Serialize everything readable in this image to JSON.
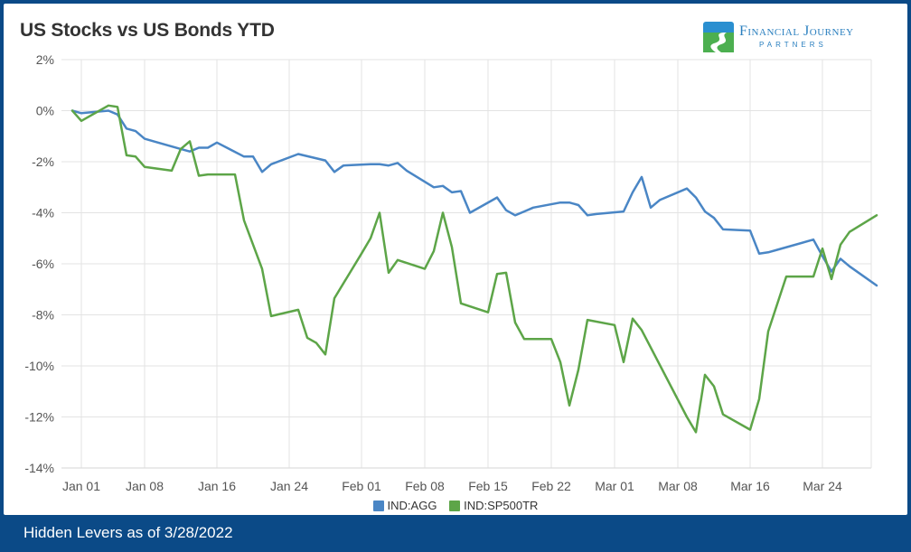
{
  "header": {
    "title": "US Stocks vs US Bonds YTD"
  },
  "logo": {
    "name": "Financial Journey",
    "subtitle": "PARTNERS",
    "icon": "road-s-logo-icon"
  },
  "footer": {
    "text": "Hidden Levers as of 3/28/2022"
  },
  "colors": {
    "agg": "#4a86c5",
    "sp500": "#5da548",
    "grid": "#e3e3e3",
    "footer_bg": "#0b4a87"
  },
  "chart_data": {
    "type": "line",
    "title": "US Stocks vs US Bonds YTD",
    "xlabel": "",
    "ylabel": "",
    "x_ticks": [
      "Jan 01",
      "Jan 08",
      "Jan 16",
      "Jan 24",
      "Feb 01",
      "Feb 08",
      "Feb 15",
      "Feb 22",
      "Mar 01",
      "Mar 08",
      "Mar 16",
      "Mar 24"
    ],
    "y_ticks": [
      "2%",
      "0%",
      "-2%",
      "-4%",
      "-6%",
      "-8%",
      "-10%",
      "-12%",
      "-14%"
    ],
    "ylim": [
      -14,
      2
    ],
    "xlim_days": [
      0,
      87
    ],
    "grid": true,
    "legend_position": "bottom",
    "series": [
      {
        "name": "IND:AGG",
        "color": "#4a86c5",
        "points": [
          [
            -1,
            0
          ],
          [
            0,
            -0.1
          ],
          [
            3,
            0
          ],
          [
            4,
            -0.15
          ],
          [
            5,
            -0.7
          ],
          [
            6,
            -0.8
          ],
          [
            7,
            -1.1
          ],
          [
            8,
            -1.2
          ],
          [
            11,
            -1.5
          ],
          [
            12,
            -1.6
          ],
          [
            13,
            -1.45
          ],
          [
            14,
            -1.45
          ],
          [
            15,
            -1.25
          ],
          [
            18,
            -1.8
          ],
          [
            19,
            -1.8
          ],
          [
            20,
            -2.4
          ],
          [
            21,
            -2.1
          ],
          [
            24,
            -1.7
          ],
          [
            27,
            -1.95
          ],
          [
            28,
            -2.4
          ],
          [
            29,
            -2.15
          ],
          [
            32,
            -2.1
          ],
          [
            33,
            -2.1
          ],
          [
            34,
            -2.15
          ],
          [
            35,
            -2.05
          ],
          [
            36,
            -2.35
          ],
          [
            39,
            -3.0
          ],
          [
            40,
            -2.95
          ],
          [
            41,
            -3.2
          ],
          [
            42,
            -3.15
          ],
          [
            43,
            -4.0
          ],
          [
            46,
            -3.4
          ],
          [
            47,
            -3.9
          ],
          [
            48,
            -4.1
          ],
          [
            49,
            -3.95
          ],
          [
            50,
            -3.8
          ],
          [
            53,
            -3.6
          ],
          [
            54,
            -3.6
          ],
          [
            55,
            -3.7
          ],
          [
            56,
            -4.1
          ],
          [
            57,
            -4.05
          ],
          [
            60,
            -3.95
          ],
          [
            61,
            -3.2
          ],
          [
            62,
            -2.6
          ],
          [
            63,
            -3.8
          ],
          [
            64,
            -3.5
          ],
          [
            67,
            -3.05
          ],
          [
            68,
            -3.4
          ],
          [
            69,
            -3.95
          ],
          [
            70,
            -4.2
          ],
          [
            71,
            -4.65
          ],
          [
            74,
            -4.7
          ],
          [
            75,
            -5.6
          ],
          [
            76,
            -5.55
          ],
          [
            77,
            -5.45
          ],
          [
            81,
            -5.05
          ],
          [
            82,
            -5.7
          ],
          [
            83,
            -6.3
          ],
          [
            84,
            -5.8
          ],
          [
            85,
            -6.1
          ],
          [
            88,
            -6.85
          ]
        ]
      },
      {
        "name": "IND:SP500TR",
        "color": "#5da548",
        "points": [
          [
            -1,
            0
          ],
          [
            0,
            -0.4
          ],
          [
            3,
            0.2
          ],
          [
            4,
            0.15
          ],
          [
            5,
            -1.75
          ],
          [
            6,
            -1.8
          ],
          [
            7,
            -2.2
          ],
          [
            10,
            -2.35
          ],
          [
            11,
            -1.5
          ],
          [
            12,
            -1.2
          ],
          [
            13,
            -2.55
          ],
          [
            14,
            -2.5
          ],
          [
            17,
            -2.5
          ],
          [
            18,
            -4.3
          ],
          [
            20,
            -6.2
          ],
          [
            21,
            -8.05
          ],
          [
            24,
            -7.8
          ],
          [
            25,
            -8.9
          ],
          [
            26,
            -9.1
          ],
          [
            27,
            -9.55
          ],
          [
            28,
            -7.35
          ],
          [
            31,
            -5.6
          ],
          [
            32,
            -5.0
          ],
          [
            33,
            -4.0
          ],
          [
            34,
            -6.35
          ],
          [
            35,
            -5.85
          ],
          [
            38,
            -6.2
          ],
          [
            39,
            -5.5
          ],
          [
            40,
            -4.0
          ],
          [
            41,
            -5.35
          ],
          [
            42,
            -7.55
          ],
          [
            45,
            -7.9
          ],
          [
            46,
            -6.4
          ],
          [
            47,
            -6.35
          ],
          [
            48,
            -8.3
          ],
          [
            49,
            -8.95
          ],
          [
            52,
            -8.95
          ],
          [
            53,
            -9.85
          ],
          [
            54,
            -11.55
          ],
          [
            55,
            -10.15
          ],
          [
            56,
            -8.2
          ],
          [
            59,
            -8.4
          ],
          [
            60,
            -9.85
          ],
          [
            61,
            -8.15
          ],
          [
            62,
            -8.6
          ],
          [
            67,
            -12.0
          ],
          [
            68,
            -12.6
          ],
          [
            69,
            -10.35
          ],
          [
            70,
            -10.8
          ],
          [
            71,
            -11.9
          ],
          [
            74,
            -12.5
          ],
          [
            75,
            -11.3
          ],
          [
            76,
            -8.65
          ],
          [
            78,
            -6.5
          ],
          [
            81,
            -6.5
          ],
          [
            82,
            -5.4
          ],
          [
            83,
            -6.6
          ],
          [
            84,
            -5.25
          ],
          [
            85,
            -4.75
          ],
          [
            88,
            -4.1
          ]
        ]
      }
    ]
  }
}
